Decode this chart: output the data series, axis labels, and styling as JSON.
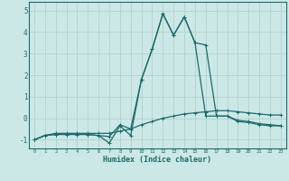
{
  "xlabel": "Humidex (Indice chaleur)",
  "background_color": "#cce8e6",
  "grid_color": "#aaccca",
  "line_color": "#1a6b6b",
  "x_values": [
    0,
    1,
    2,
    3,
    4,
    5,
    6,
    7,
    8,
    9,
    10,
    11,
    12,
    13,
    14,
    15,
    16,
    17,
    18,
    19,
    20,
    21,
    22,
    23
  ],
  "line1": [
    -1.0,
    -0.8,
    -0.7,
    -0.7,
    -0.7,
    -0.7,
    -0.7,
    -0.7,
    -0.6,
    -0.5,
    -0.3,
    -0.15,
    0.0,
    0.1,
    0.2,
    0.25,
    0.3,
    0.35,
    0.35,
    0.3,
    0.25,
    0.2,
    0.15,
    0.15
  ],
  "line2": [
    -1.0,
    -0.8,
    -0.75,
    -0.75,
    -0.75,
    -0.75,
    -0.8,
    -0.85,
    -0.3,
    -0.5,
    1.8,
    3.2,
    4.85,
    3.85,
    4.7,
    3.5,
    3.4,
    0.1,
    0.1,
    -0.1,
    -0.15,
    -0.25,
    -0.3,
    -0.35
  ],
  "line3": [
    -1.0,
    -0.8,
    -0.75,
    -0.75,
    -0.75,
    -0.75,
    -0.8,
    -1.15,
    -0.35,
    -0.8,
    1.8,
    3.2,
    4.85,
    3.85,
    4.7,
    3.5,
    0.1,
    0.1,
    0.1,
    -0.15,
    -0.2,
    -0.3,
    -0.35,
    -0.35
  ],
  "ylim": [
    -1.4,
    5.4
  ],
  "xlim": [
    -0.5,
    23.5
  ],
  "yticks": [
    -1,
    0,
    1,
    2,
    3,
    4,
    5
  ],
  "xticks": [
    0,
    1,
    2,
    3,
    4,
    5,
    6,
    7,
    8,
    9,
    10,
    11,
    12,
    13,
    14,
    15,
    16,
    17,
    18,
    19,
    20,
    21,
    22,
    23
  ]
}
